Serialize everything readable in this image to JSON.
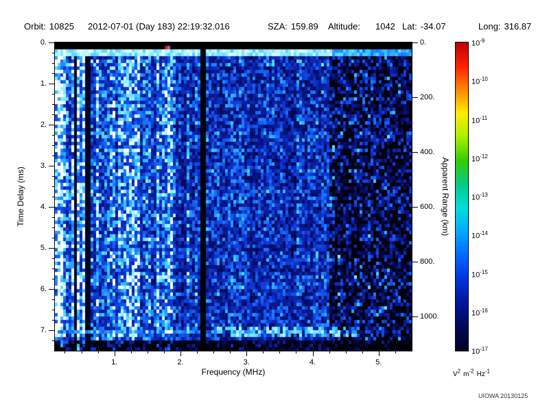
{
  "header": {
    "orbit_label": "Orbit:",
    "orbit_value": "10825",
    "datetime": "2012-07-01 (Day 183) 22:19:32.016",
    "sza_label": "SZA:",
    "sza_value": "159.89",
    "altitude_label": "Altitude:",
    "altitude_value": "1042",
    "lat_label": "Lat:",
    "lat_value": "-34.07",
    "long_label": "Long:",
    "long_value": "316.87"
  },
  "credit": "UIOWA 20130125",
  "chart_data": {
    "type": "heatmap",
    "title": "",
    "xlabel": "Frequency (MHz)",
    "ylabel_left": "Time Delay (ms)",
    "ylabel_right": "Apparent Range (km)",
    "x_range_mhz": [
      0.1,
      5.5
    ],
    "y_range_ms": [
      0.0,
      7.5
    ],
    "range_km_per_ms": 150,
    "x_ticks": [
      "1.",
      "2.",
      "3.",
      "4.",
      "5."
    ],
    "y_ticks_left": [
      "0.",
      "1.",
      "2.",
      "3.",
      "4.",
      "5.",
      "6.",
      "7."
    ],
    "y_ticks_right": [
      "0.",
      "200.",
      "400.",
      "600.",
      "800.",
      "1000."
    ],
    "grid": false,
    "colorbar": {
      "scale": "log",
      "base": "10",
      "exponents": [
        "-9",
        "-10",
        "-11",
        "-12",
        "-13",
        "-14",
        "-15",
        "-16",
        "-17"
      ],
      "unit_parts": [
        {
          "t": "V",
          "s": "2"
        },
        {
          "t": "m",
          "s": "-2"
        },
        {
          "t": "Hz",
          "s": "-1"
        }
      ],
      "gradient": [
        "#bb0000",
        "#ff2200",
        "#ff8800",
        "#ffee00",
        "#aaee00",
        "#33cc00",
        "#00cc88",
        "#00dddd",
        "#00aaff",
        "#0066ff",
        "#0033dd",
        "#001499",
        "#000a55",
        "#000022"
      ]
    },
    "features": {
      "top_black_band_ms": [
        0.0,
        0.18
      ],
      "transmitter_line_ms": [
        0.18,
        0.3
      ],
      "vertical_dropout_mhz": 2.35,
      "bright_striated_band_mhz": [
        0.1,
        1.9
      ],
      "dark_patchy_band_mhz": [
        4.25,
        5.5
      ],
      "ionospheric_echo_ms": [
        6.95,
        7.18
      ],
      "echo_bright_blob_mhz": [
        2.5,
        4.7
      ],
      "dark_bottom_ms": [
        7.22,
        7.5
      ],
      "background_level": "diffuse blue noise ~1e-16 V2 m-2 Hz-1",
      "echo_level": "cyan ~1e-15 to 1e-14 V2 m-2 Hz-1"
    },
    "seed": 7
  }
}
